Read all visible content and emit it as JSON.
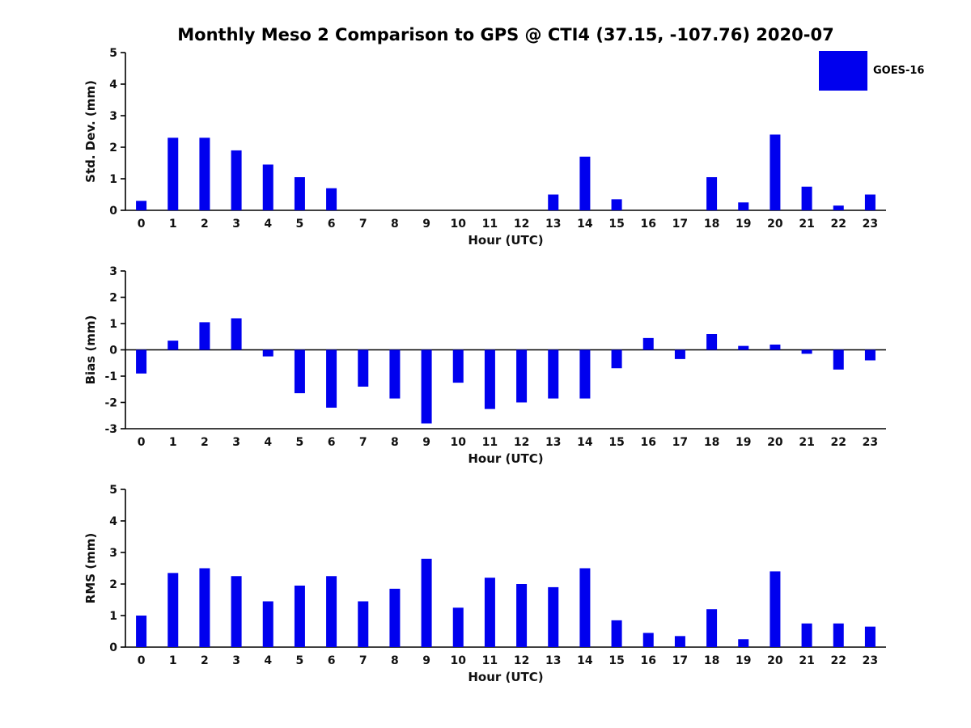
{
  "title": "Monthly Meso 2 Comparison to GPS @ CTI4 (37.15, -107.76) 2020-07",
  "legend": {
    "label": "GOES-16",
    "swatch_color": "#0000EE"
  },
  "chart_data": [
    {
      "type": "bar",
      "title": "",
      "ylabel": "Std. Dev. (mm)",
      "xlabel": "Hour (UTC)",
      "series": "GOES-16",
      "bar_color": "#0000EE",
      "grid": false,
      "legend_position": "top-right-outside",
      "ylim": [
        0,
        5
      ],
      "yticks": [
        0,
        1,
        2,
        3,
        4,
        5
      ],
      "categories": [
        "0",
        "1",
        "2",
        "3",
        "4",
        "5",
        "6",
        "7",
        "8",
        "9",
        "10",
        "11",
        "12",
        "13",
        "14",
        "15",
        "16",
        "17",
        "18",
        "19",
        "20",
        "21",
        "22",
        "23"
      ],
      "values": [
        0.3,
        2.3,
        2.3,
        1.9,
        1.45,
        1.05,
        0.7,
        0,
        0,
        0,
        0,
        0,
        0,
        0.5,
        1.7,
        0.35,
        0,
        0,
        1.05,
        0.25,
        2.4,
        0.75,
        0.15,
        0.5
      ]
    },
    {
      "type": "bar",
      "title": "",
      "ylabel": "Bias (mm)",
      "xlabel": "Hour (UTC)",
      "series": "GOES-16",
      "bar_color": "#0000EE",
      "grid": false,
      "ylim": [
        -3,
        3
      ],
      "yticks": [
        -3,
        -2,
        -1,
        0,
        1,
        2,
        3
      ],
      "categories": [
        "0",
        "1",
        "2",
        "3",
        "4",
        "5",
        "6",
        "7",
        "8",
        "9",
        "10",
        "11",
        "12",
        "13",
        "14",
        "15",
        "16",
        "17",
        "18",
        "19",
        "20",
        "21",
        "22",
        "23"
      ],
      "values": [
        -0.9,
        0.35,
        1.05,
        1.2,
        -0.25,
        -1.65,
        -2.2,
        -1.4,
        -1.85,
        -2.8,
        -1.25,
        -2.25,
        -2.0,
        -1.85,
        -1.85,
        -0.7,
        0.45,
        -0.35,
        0.6,
        0.15,
        0.2,
        -0.15,
        -0.75,
        -0.4
      ]
    },
    {
      "type": "bar",
      "title": "",
      "ylabel": "RMS (mm)",
      "xlabel": "Hour (UTC)",
      "series": "GOES-16",
      "bar_color": "#0000EE",
      "grid": false,
      "ylim": [
        0,
        5
      ],
      "yticks": [
        0,
        1,
        2,
        3,
        4,
        5
      ],
      "categories": [
        "0",
        "1",
        "2",
        "3",
        "4",
        "5",
        "6",
        "7",
        "8",
        "9",
        "10",
        "11",
        "12",
        "13",
        "14",
        "15",
        "16",
        "17",
        "18",
        "19",
        "20",
        "21",
        "22",
        "23"
      ],
      "values": [
        1.0,
        2.35,
        2.5,
        2.25,
        1.45,
        1.95,
        2.25,
        1.45,
        1.85,
        2.8,
        1.25,
        2.2,
        2.0,
        1.9,
        2.5,
        0.85,
        0.45,
        0.35,
        1.2,
        0.25,
        2.4,
        0.75,
        0.75,
        0.65
      ]
    }
  ]
}
